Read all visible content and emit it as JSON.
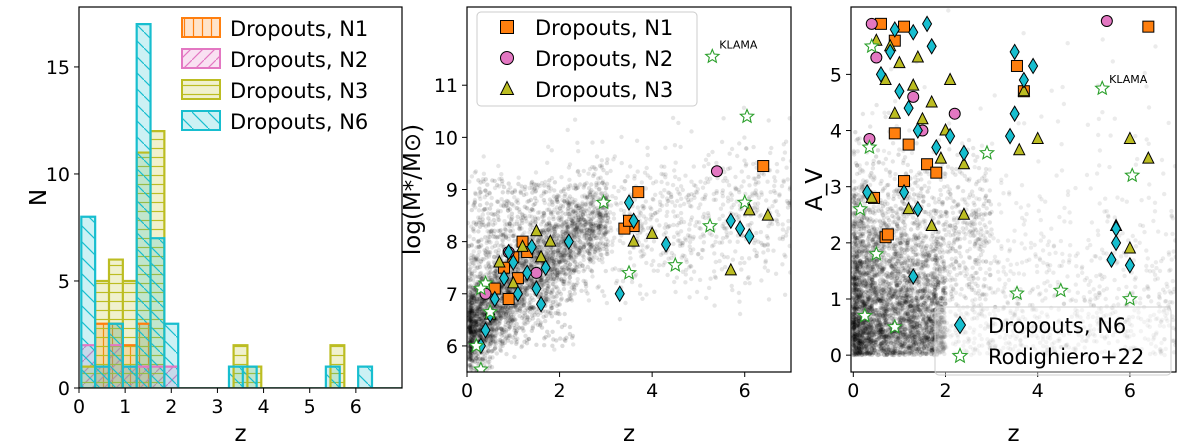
{
  "chart_data": [
    {
      "type": "histogram",
      "xlabel": "z",
      "ylabel": "N",
      "xlim": [
        0,
        7
      ],
      "ylim": [
        0,
        17.8
      ],
      "xticks": [
        "0",
        "1",
        "2",
        "3",
        "4",
        "5",
        "6"
      ],
      "yticks": [
        "0",
        "5",
        "10",
        "15"
      ],
      "legend_position": "top-right",
      "bin_width": 0.3,
      "series": [
        {
          "name": "Dropouts, N1",
          "color": "#ff7f0e",
          "hatch": "vertical",
          "bins": [
            [
              0.5,
              3
            ],
            [
              0.8,
              3
            ],
            [
              1.1,
              2
            ],
            [
              1.4,
              3
            ]
          ]
        },
        {
          "name": "Dropouts, N2",
          "color": "#e377c2",
          "hatch": "diagonal",
          "bins": [
            [
              0.2,
              2
            ],
            [
              0.5,
              1
            ],
            [
              0.8,
              2
            ],
            [
              1.1,
              1
            ],
            [
              1.4,
              1
            ],
            [
              1.7,
              1
            ],
            [
              2.0,
              1
            ]
          ]
        },
        {
          "name": "Dropouts, N3",
          "color": "#bcbd22",
          "hatch": "horizontal",
          "bins": [
            [
              0.2,
              1
            ],
            [
              0.5,
              5
            ],
            [
              0.8,
              6
            ],
            [
              1.1,
              5
            ],
            [
              1.4,
              11
            ],
            [
              1.7,
              12
            ],
            [
              3.5,
              2
            ],
            [
              3.8,
              1
            ],
            [
              5.6,
              2
            ]
          ]
        },
        {
          "name": "Dropouts, N6",
          "color": "#17becf",
          "hatch": "backslash",
          "bins": [
            [
              0.2,
              8
            ],
            [
              0.5,
              1
            ],
            [
              0.8,
              3
            ],
            [
              1.1,
              1
            ],
            [
              1.4,
              17
            ],
            [
              1.7,
              7
            ],
            [
              2.0,
              3
            ],
            [
              3.4,
              1
            ],
            [
              3.7,
              1
            ],
            [
              5.5,
              1
            ],
            [
              6.2,
              1
            ]
          ]
        }
      ]
    },
    {
      "type": "scatter",
      "xlabel": "z",
      "ylabel": "log(M*/M⊙)",
      "xlim": [
        0,
        7
      ],
      "ylim": [
        5.5,
        12.5
      ],
      "xticks": [
        "0",
        "2",
        "4",
        "6"
      ],
      "yticks": [
        "6",
        "7",
        "8",
        "9",
        "10",
        "11"
      ],
      "legend_position": "top-left",
      "annotation": {
        "text": "KLAMA",
        "x": 5.45,
        "y": 11.7
      },
      "series": [
        {
          "name": "Dropouts, N1",
          "marker": "square",
          "color": "#ff7f0e",
          "points": [
            [
              3.7,
              8.95
            ],
            [
              3.6,
              8.3
            ],
            [
              3.4,
              8.25
            ],
            [
              1.2,
              8.0
            ],
            [
              1.0,
              7.7
            ],
            [
              0.8,
              7.5
            ],
            [
              1.1,
              7.3
            ],
            [
              0.6,
              7.1
            ],
            [
              0.9,
              6.9
            ],
            [
              1.3,
              7.8
            ],
            [
              6.4,
              9.45
            ],
            [
              3.5,
              8.4
            ]
          ]
        },
        {
          "name": "Dropouts, N2",
          "marker": "circle",
          "color": "#e377c2",
          "points": [
            [
              5.4,
              9.35
            ],
            [
              0.4,
              7.0
            ],
            [
              1.5,
              7.4
            ],
            [
              0.9,
              7.8
            ]
          ]
        },
        {
          "name": "Dropouts, N3",
          "marker": "triangle",
          "color": "#bcbd22",
          "points": [
            [
              6.1,
              8.6
            ],
            [
              6.5,
              8.5
            ],
            [
              3.6,
              8.0
            ],
            [
              4.0,
              8.15
            ],
            [
              5.7,
              7.45
            ],
            [
              0.5,
              6.6
            ],
            [
              1.0,
              7.2
            ],
            [
              1.5,
              8.2
            ],
            [
              1.8,
              8.0
            ],
            [
              1.2,
              7.9
            ],
            [
              0.7,
              7.6
            ],
            [
              1.6,
              7.7
            ]
          ]
        },
        {
          "name": "Dropouts, N6",
          "marker": "diamond",
          "color": "#17becf",
          "points": [
            [
              3.3,
              7.0
            ],
            [
              3.5,
              8.75
            ],
            [
              3.6,
              8.4
            ],
            [
              4.3,
              7.95
            ],
            [
              5.7,
              8.4
            ],
            [
              5.9,
              8.25
            ],
            [
              6.1,
              8.1
            ],
            [
              0.3,
              6.0
            ],
            [
              0.4,
              6.3
            ],
            [
              0.6,
              6.9
            ],
            [
              0.8,
              7.3
            ],
            [
              1.0,
              7.6
            ],
            [
              1.3,
              7.4
            ],
            [
              1.5,
              7.1
            ],
            [
              1.6,
              6.8
            ],
            [
              2.2,
              8.0
            ],
            [
              1.7,
              7.5
            ],
            [
              1.1,
              7.0
            ],
            [
              0.5,
              6.6
            ],
            [
              0.9,
              7.8
            ],
            [
              1.4,
              7.9
            ]
          ]
        },
        {
          "name": "Rodighiero+22",
          "marker": "star",
          "color": "#2ca02c",
          "points": [
            [
              5.3,
              11.55
            ],
            [
              6.05,
              10.4
            ],
            [
              6.0,
              8.75
            ],
            [
              5.25,
              8.3
            ],
            [
              2.95,
              8.75
            ],
            [
              4.5,
              7.55
            ],
            [
              3.5,
              7.4
            ],
            [
              0.4,
              7.2
            ],
            [
              0.3,
              7.1
            ],
            [
              0.5,
              6.65
            ],
            [
              0.2,
              6.0
            ],
            [
              0.3,
              5.55
            ]
          ]
        }
      ]
    },
    {
      "type": "scatter",
      "xlabel": "z",
      "ylabel": "A_V",
      "xlim": [
        -0.05,
        7
      ],
      "ylim": [
        -0.3,
        6.2
      ],
      "xticks": [
        "0",
        "2",
        "4",
        "6"
      ],
      "yticks": [
        "0",
        "1",
        "2",
        "3",
        "4",
        "5"
      ],
      "legend_position": "bottom-right",
      "annotation": {
        "text": "KLAMA",
        "x": 5.55,
        "y": 4.85
      },
      "series": [
        {
          "name": "Dropouts, N1",
          "marker": "square",
          "color": "#ff7f0e",
          "points": [
            [
              0.6,
              5.9
            ],
            [
              1.1,
              5.85
            ],
            [
              0.9,
              5.6
            ],
            [
              3.7,
              4.7
            ],
            [
              3.55,
              5.15
            ],
            [
              6.4,
              5.85
            ],
            [
              0.9,
              3.95
            ],
            [
              1.2,
              3.75
            ],
            [
              1.6,
              3.4
            ],
            [
              1.8,
              3.25
            ],
            [
              0.7,
              2.1
            ],
            [
              0.75,
              2.15
            ],
            [
              0.45,
              2.8
            ],
            [
              1.1,
              3.1
            ]
          ]
        },
        {
          "name": "Dropouts, N2",
          "marker": "circle",
          "color": "#e377c2",
          "points": [
            [
              0.4,
              5.9
            ],
            [
              0.5,
              5.3
            ],
            [
              1.3,
              4.6
            ],
            [
              1.5,
              4.0
            ],
            [
              2.2,
              4.3
            ],
            [
              0.35,
              3.85
            ],
            [
              5.5,
              5.95
            ]
          ]
        },
        {
          "name": "Dropouts, N3",
          "marker": "triangle",
          "color": "#bcbd22",
          "points": [
            [
              0.5,
              5.6
            ],
            [
              0.8,
              5.5
            ],
            [
              1.0,
              5.2
            ],
            [
              1.3,
              4.8
            ],
            [
              1.7,
              4.5
            ],
            [
              2.0,
              4.0
            ],
            [
              0.9,
              4.3
            ],
            [
              1.5,
              4.2
            ],
            [
              1.9,
              3.5
            ],
            [
              2.4,
              3.4
            ],
            [
              3.6,
              3.65
            ],
            [
              4.0,
              3.85
            ],
            [
              6.0,
              3.85
            ],
            [
              6.4,
              3.5
            ],
            [
              5.7,
              2.3
            ],
            [
              6.0,
              1.9
            ],
            [
              0.4,
              2.8
            ],
            [
              1.2,
              2.6
            ],
            [
              1.7,
              2.3
            ],
            [
              2.4,
              2.5
            ],
            [
              3.7,
              4.7
            ],
            [
              1.4,
              5.3
            ],
            [
              0.7,
              4.9
            ],
            [
              2.1,
              4.9
            ]
          ]
        },
        {
          "name": "Dropouts, N6",
          "marker": "diamond",
          "color": "#17becf",
          "points": [
            [
              0.9,
              5.8
            ],
            [
              1.3,
              5.75
            ],
            [
              1.6,
              5.9
            ],
            [
              0.6,
              5.0
            ],
            [
              1.0,
              4.7
            ],
            [
              1.2,
              4.4
            ],
            [
              1.4,
              4.0
            ],
            [
              1.8,
              3.7
            ],
            [
              2.1,
              3.9
            ],
            [
              2.4,
              3.6
            ],
            [
              3.5,
              5.4
            ],
            [
              3.9,
              5.15
            ],
            [
              3.7,
              4.9
            ],
            [
              3.5,
              4.3
            ],
            [
              3.4,
              3.9
            ],
            [
              1.1,
              2.9
            ],
            [
              1.4,
              2.6
            ],
            [
              1.3,
              1.4
            ],
            [
              0.3,
              2.9
            ],
            [
              5.7,
              2.25
            ],
            [
              6.0,
              1.6
            ],
            [
              5.6,
              1.7
            ],
            [
              5.7,
              2.0
            ],
            [
              0.8,
              5.4
            ],
            [
              1.7,
              5.5
            ]
          ]
        },
        {
          "name": "Rodighiero+22",
          "marker": "star",
          "color": "#2ca02c",
          "points": [
            [
              0.4,
              5.5
            ],
            [
              0.35,
              3.7
            ],
            [
              0.5,
              1.8
            ],
            [
              0.25,
              0.7
            ],
            [
              0.15,
              2.6
            ],
            [
              2.9,
              3.6
            ],
            [
              3.55,
              1.1
            ],
            [
              4.5,
              1.15
            ],
            [
              5.4,
              4.75
            ],
            [
              6.05,
              3.2
            ],
            [
              6.0,
              1.0
            ],
            [
              0.9,
              0.5
            ]
          ]
        }
      ]
    }
  ]
}
